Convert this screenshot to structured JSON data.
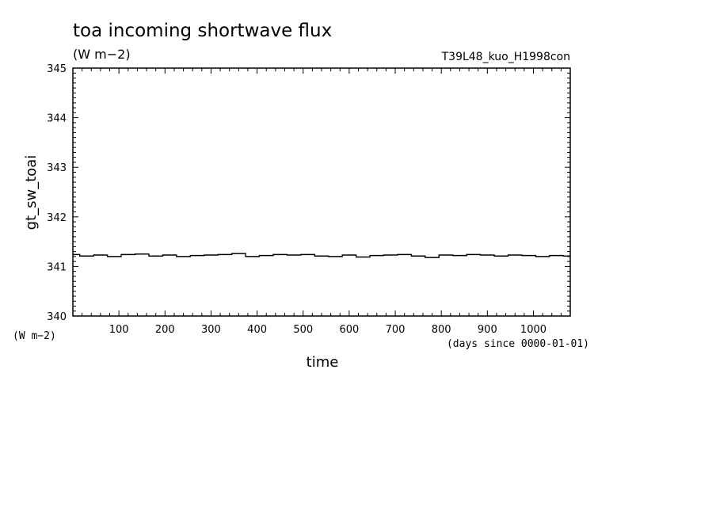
{
  "chart_data": {
    "type": "line",
    "title": "toa incoming shortwave flux",
    "title_units": "(W m−2)",
    "run_label": "T39L48_kuo_H1998con",
    "ylabel": "gt_sw_toai",
    "ylabel_units": "(W m−2)",
    "xlabel": "time",
    "xlabel_units": "(days since 0000-01-01)",
    "xlim": [
      0,
      1080
    ],
    "ylim": [
      340,
      345
    ],
    "x_ticks": [
      "100",
      "200",
      "300",
      "400",
      "500",
      "600",
      "700",
      "800",
      "900",
      "1000"
    ],
    "y_ticks": [
      "340",
      "341",
      "342",
      "343",
      "344",
      "345"
    ],
    "grid": false,
    "series": [
      {
        "x": [
          0,
          30,
          60,
          90,
          120,
          150,
          180,
          210,
          240,
          270,
          300,
          330,
          360,
          390,
          420,
          450,
          480,
          510,
          540,
          570,
          600,
          630,
          660,
          690,
          720,
          750,
          780,
          810,
          840,
          870,
          900,
          930,
          960,
          990,
          1020,
          1050,
          1080
        ],
        "y": [
          341.24,
          341.21,
          341.23,
          341.2,
          341.24,
          341.25,
          341.21,
          341.23,
          341.2,
          341.22,
          341.23,
          341.24,
          341.26,
          341.2,
          341.22,
          341.24,
          341.23,
          341.24,
          341.21,
          341.2,
          341.23,
          341.19,
          341.22,
          341.23,
          341.24,
          341.21,
          341.18,
          341.23,
          341.22,
          341.24,
          341.23,
          341.21,
          341.23,
          341.22,
          341.2,
          341.22,
          341.21
        ],
        "color": "#000000"
      }
    ]
  }
}
